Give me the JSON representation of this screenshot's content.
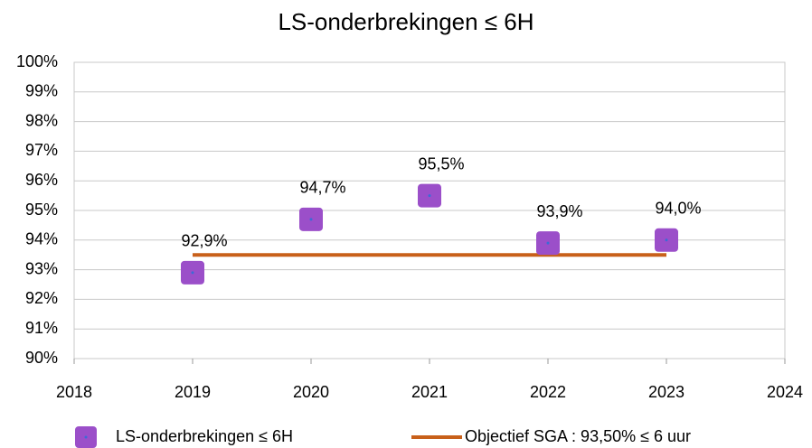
{
  "chart_data": {
    "type": "scatter",
    "title": "LS-onderbrekingen ≤ 6H",
    "xlim": [
      2018,
      2024
    ],
    "xticks": [
      2018,
      2019,
      2020,
      2021,
      2022,
      2023,
      2024
    ],
    "ylim": [
      90,
      100
    ],
    "yticks": [
      {
        "value": 90,
        "label": "90%"
      },
      {
        "value": 91,
        "label": "91%"
      },
      {
        "value": 92,
        "label": "92%"
      },
      {
        "value": 93,
        "label": "93%"
      },
      {
        "value": 94,
        "label": "94%"
      },
      {
        "value": 95,
        "label": "95%"
      },
      {
        "value": 96,
        "label": "96%"
      },
      {
        "value": 97,
        "label": "97%"
      },
      {
        "value": 98,
        "label": "98%"
      },
      {
        "value": 99,
        "label": "99%"
      },
      {
        "value": 100,
        "label": "100%"
      }
    ],
    "grid": true,
    "legend": "bottom",
    "series": [
      {
        "name": "LS-onderbrekingen ≤ 6H",
        "type": "scatter",
        "color": "#9b4fc9",
        "x": [
          2019,
          2020,
          2021,
          2022,
          2023
        ],
        "values": [
          92.9,
          94.7,
          95.5,
          93.9,
          94.0
        ],
        "value_labels": [
          "92,9%",
          "94,7%",
          "95,5%",
          "93,9%",
          "94,0%"
        ]
      },
      {
        "name": "Objectief SGA : 93,50% ≤ 6 uur",
        "type": "line",
        "color": "#c8601a",
        "x": [
          2019,
          2023
        ],
        "values": [
          93.5,
          93.5
        ]
      }
    ]
  }
}
